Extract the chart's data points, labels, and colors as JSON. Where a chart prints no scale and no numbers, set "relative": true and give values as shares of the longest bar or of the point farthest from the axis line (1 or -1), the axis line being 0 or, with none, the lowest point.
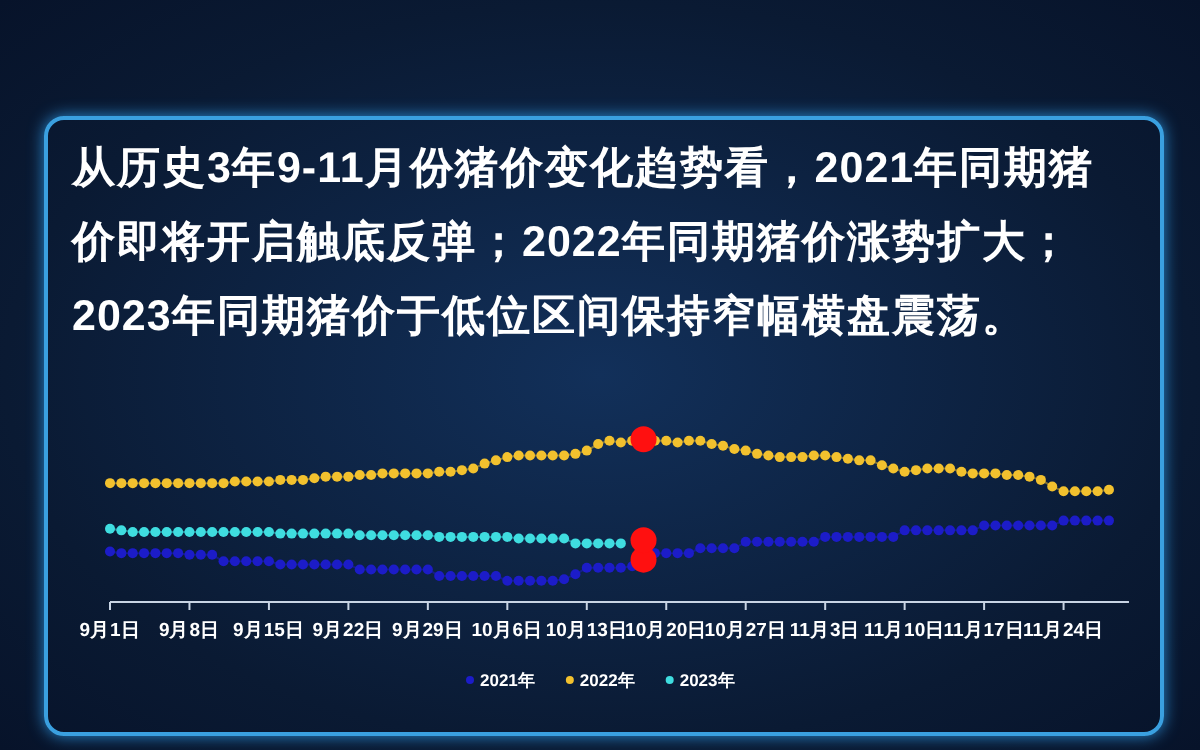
{
  "chart_data": {
    "type": "line",
    "relative": true,
    "marker": "circle",
    "legend": "bottom",
    "title": "从历史3年9-11月份猪价变化趋势看，2021年同期猪价即将开启触底反弹；2022年同期猪价涨势扩大；2023年同期猪价于低位区间保持窄幅横盘震荡。",
    "categories": [
      "9月1日",
      null,
      null,
      null,
      null,
      null,
      null,
      "9月8日",
      null,
      null,
      null,
      null,
      null,
      null,
      "9月15日",
      null,
      null,
      null,
      null,
      null,
      null,
      "9月22日",
      null,
      null,
      null,
      null,
      null,
      null,
      "9月29日",
      null,
      null,
      null,
      null,
      null,
      null,
      "10月6日",
      null,
      null,
      null,
      null,
      null,
      null,
      "10月13日",
      null,
      null,
      null,
      null,
      null,
      null,
      "10月20日",
      null,
      null,
      null,
      null,
      null,
      null,
      "10月27日",
      null,
      null,
      null,
      null,
      null,
      null,
      "11月3日",
      null,
      null,
      null,
      null,
      null,
      null,
      "11月10日",
      null,
      null,
      null,
      null,
      null,
      null,
      "11月17日",
      null,
      null,
      null,
      null,
      null,
      null,
      "11月24日",
      null,
      null,
      null,
      null
    ],
    "series": [
      {
        "name": "2021年",
        "color": "#1c1cc8",
        "colors": [
          null,
          null,
          null,
          null,
          null,
          null,
          null,
          null,
          null,
          null,
          null,
          null,
          null,
          null,
          null,
          null,
          null,
          null,
          null,
          null,
          null,
          null,
          null,
          null,
          null,
          null,
          null,
          null,
          null,
          null,
          null,
          null,
          null,
          null,
          null,
          null,
          null,
          null,
          null,
          null,
          null,
          null,
          null,
          null,
          null,
          null,
          null,
          "#ff1010",
          null,
          null,
          null,
          null,
          null,
          null,
          null,
          null,
          null,
          null,
          null,
          null,
          null,
          null,
          null,
          null,
          null,
          null,
          null,
          null,
          null,
          null,
          null,
          null,
          null,
          null,
          null,
          null,
          null,
          null,
          null,
          null,
          null,
          null,
          null,
          null,
          null,
          null,
          null,
          null,
          null
        ],
        "values": [
          0.31,
          0.3,
          0.3,
          0.3,
          0.3,
          0.3,
          0.3,
          0.29,
          0.29,
          0.29,
          0.25,
          0.25,
          0.25,
          0.25,
          0.25,
          0.23,
          0.23,
          0.23,
          0.23,
          0.23,
          0.23,
          0.23,
          0.2,
          0.2,
          0.2,
          0.2,
          0.2,
          0.2,
          0.2,
          0.16,
          0.16,
          0.16,
          0.16,
          0.16,
          0.16,
          0.13,
          0.13,
          0.13,
          0.13,
          0.13,
          0.14,
          0.17,
          0.21,
          0.21,
          0.21,
          0.21,
          0.22,
          0.26,
          0.3,
          0.3,
          0.3,
          0.3,
          0.33,
          0.33,
          0.33,
          0.33,
          0.37,
          0.37,
          0.37,
          0.37,
          0.37,
          0.37,
          0.37,
          0.4,
          0.4,
          0.4,
          0.4,
          0.4,
          0.4,
          0.4,
          0.44,
          0.44,
          0.44,
          0.44,
          0.44,
          0.44,
          0.44,
          0.47,
          0.47,
          0.47,
          0.47,
          0.47,
          0.47,
          0.47,
          0.5,
          0.5,
          0.5,
          0.5,
          0.5
        ]
      },
      {
        "name": "2022年",
        "color": "#f2c12e",
        "colors": [
          null,
          null,
          null,
          null,
          null,
          null,
          null,
          null,
          null,
          null,
          null,
          null,
          null,
          null,
          null,
          null,
          null,
          null,
          null,
          null,
          null,
          null,
          null,
          null,
          null,
          null,
          null,
          null,
          null,
          null,
          null,
          null,
          null,
          null,
          null,
          null,
          null,
          null,
          null,
          null,
          null,
          null,
          null,
          null,
          null,
          null,
          null,
          "#ff1010",
          null,
          null,
          null,
          null,
          null,
          null,
          null,
          null,
          null,
          null,
          null,
          null,
          null,
          null,
          null,
          null,
          null,
          null,
          null,
          null,
          null,
          null,
          null,
          null,
          null,
          null,
          null,
          null,
          null,
          null,
          null,
          null,
          null,
          null,
          null,
          null,
          null,
          null,
          null,
          null,
          null
        ],
        "values": [
          0.73,
          0.73,
          0.73,
          0.73,
          0.73,
          0.73,
          0.73,
          0.73,
          0.73,
          0.73,
          0.73,
          0.74,
          0.74,
          0.74,
          0.74,
          0.75,
          0.75,
          0.75,
          0.76,
          0.77,
          0.77,
          0.77,
          0.78,
          0.78,
          0.79,
          0.79,
          0.79,
          0.79,
          0.79,
          0.8,
          0.8,
          0.81,
          0.82,
          0.85,
          0.87,
          0.89,
          0.9,
          0.9,
          0.9,
          0.9,
          0.9,
          0.91,
          0.93,
          0.97,
          0.99,
          0.98,
          0.99,
          1,
          0.99,
          0.99,
          0.98,
          0.99,
          0.99,
          0.97,
          0.96,
          0.94,
          0.93,
          0.91,
          0.9,
          0.89,
          0.89,
          0.89,
          0.9,
          0.9,
          0.89,
          0.88,
          0.87,
          0.87,
          0.84,
          0.82,
          0.8,
          0.81,
          0.82,
          0.82,
          0.82,
          0.8,
          0.79,
          0.79,
          0.79,
          0.78,
          0.78,
          0.77,
          0.75,
          0.71,
          0.68,
          0.68,
          0.68,
          0.68,
          0.69
        ]
      },
      {
        "name": "2023年",
        "color": "#3fdde0",
        "colors": [
          null,
          null,
          null,
          null,
          null,
          null,
          null,
          null,
          null,
          null,
          null,
          null,
          null,
          null,
          null,
          null,
          null,
          null,
          null,
          null,
          null,
          null,
          null,
          null,
          null,
          null,
          null,
          null,
          null,
          null,
          null,
          null,
          null,
          null,
          null,
          null,
          null,
          null,
          null,
          null,
          null,
          null,
          null,
          null,
          null,
          null,
          null,
          "#ff1010",
          null,
          null,
          null,
          null,
          null,
          null,
          null,
          null,
          null,
          null,
          null,
          null,
          null,
          null,
          null,
          null,
          null,
          null,
          null,
          null,
          null,
          null,
          null,
          null,
          null,
          null,
          null,
          null,
          null,
          null,
          null,
          null,
          null,
          null,
          null,
          null,
          null,
          null,
          null,
          null,
          null
        ],
        "values": [
          0.45,
          0.44,
          0.43,
          0.43,
          0.43,
          0.43,
          0.43,
          0.43,
          0.43,
          0.43,
          0.43,
          0.43,
          0.43,
          0.43,
          0.43,
          0.42,
          0.42,
          0.42,
          0.42,
          0.42,
          0.42,
          0.42,
          0.41,
          0.41,
          0.41,
          0.41,
          0.41,
          0.41,
          0.41,
          0.4,
          0.4,
          0.4,
          0.4,
          0.4,
          0.4,
          0.4,
          0.39,
          0.39,
          0.39,
          0.39,
          0.39,
          0.36,
          0.36,
          0.36,
          0.36,
          0.36,
          null,
          0.38,
          null,
          null,
          null,
          null,
          null,
          null,
          null,
          null,
          null,
          null,
          null,
          null,
          null,
          null,
          null,
          null,
          null,
          null,
          null,
          null,
          null,
          null,
          null,
          null,
          null,
          null,
          null,
          null,
          null,
          null,
          null,
          null,
          null,
          null,
          null,
          null,
          null,
          null,
          null,
          null,
          null
        ]
      }
    ]
  }
}
